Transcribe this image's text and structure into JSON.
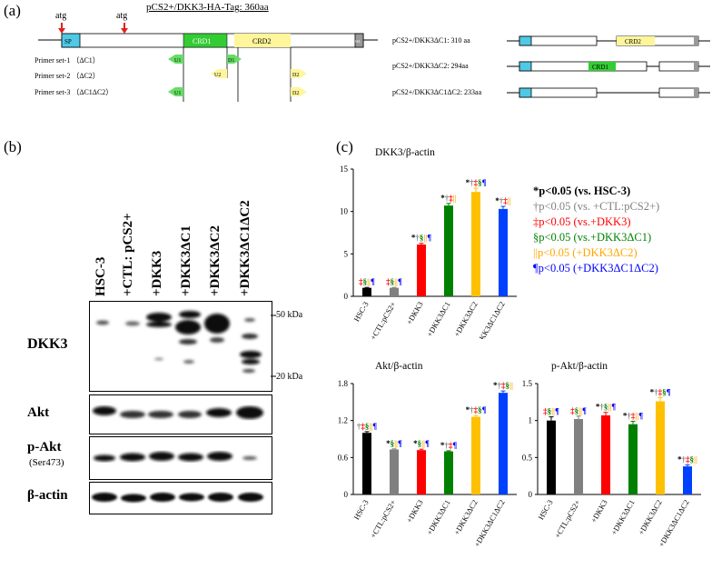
{
  "panels": {
    "a": "(a)",
    "b": "(b)",
    "c": "(c)"
  },
  "construct": {
    "title": "pCS2+/DKK3-HA-Tag: 360aa",
    "atg1": "atg",
    "atg2": "atg",
    "sp": "SP",
    "crd1": "CRD1",
    "crd2": "CRD2",
    "ha": "HA",
    "primer_sets": [
      "Primer set-1 （ΔC1）",
      "Primer set-2 （ΔC2）",
      "Primer set-3 （ΔC1ΔC2）"
    ],
    "primers": {
      "u1": "U1",
      "d1": "D1",
      "u2": "U2",
      "d2": "D2"
    },
    "variants": [
      {
        "label": "pCS2+/DKK3ΔC1: 310 aa",
        "domain": "CRD2"
      },
      {
        "label": "pCS2+/DKK3ΔC2: 294aa",
        "domain": "CRD1"
      },
      {
        "label": "pCS2+/DKK3ΔC1ΔC2: 233aa",
        "domain": ""
      }
    ],
    "colors": {
      "sp": "#4fc9e6",
      "crd1": "#33cc33",
      "crd2": "#fff59a",
      "ha": "#999999",
      "u": "#66dd66",
      "d2": "#fff59a"
    }
  },
  "blot": {
    "lanes": [
      "HSC-3",
      "+CTL: pCS2+",
      "+DKK3",
      "+DKK3ΔC1",
      "+DKK3ΔC2",
      "+DKK3ΔC1ΔC2"
    ],
    "rows": {
      "dkk3": "DKK3",
      "akt": "Akt",
      "pakt": "p-Akt",
      "pakt_sub": "(Ser473)",
      "actin": "β-actin"
    },
    "markers": {
      "kda50": "50 kDa",
      "kda20": "20 kDa"
    }
  },
  "legend": [
    {
      "text": "*p<0.05 (vs. HSC-3)",
      "color": "#000000"
    },
    {
      "text": "†p<0.05 (vs. +CTL:pCS2+)",
      "color": "#808080"
    },
    {
      "text": "‡p<0.05 (vs.+DKK3)",
      "color": "#ff0000"
    },
    {
      "text": "§p<0.05 (vs.+DKK3ΔC1)",
      "color": "#008000"
    },
    {
      "text": "||p<0.05 (+DKK3ΔC2)",
      "color": "#ffa500"
    },
    {
      "text": "¶p<0.05 (+DKK3ΔC1ΔC2)",
      "color": "#0000ff"
    }
  ],
  "chart_data": [
    {
      "type": "bar",
      "title": "DKK3/β-actin",
      "categories": [
        "HSC-3",
        "+CTL:pCS2+",
        "+DKK3",
        "+DKK3ΔC1",
        "+DKK3ΔC2",
        "+DKK3ΔC1ΔC2"
      ],
      "values": [
        1.0,
        1.0,
        6.1,
        10.7,
        12.3,
        10.3
      ],
      "errors": [
        0.05,
        0.05,
        0.15,
        0.25,
        0.45,
        0.3
      ],
      "colors": [
        "#000000",
        "#808080",
        "#ff0000",
        "#008000",
        "#ffc000",
        "#0040ff"
      ],
      "ylim": [
        0,
        15
      ],
      "yticks": [
        "0",
        "5",
        "10",
        "15"
      ],
      "ytick_values": [
        0,
        5,
        10,
        15
      ],
      "annotations": [
        [
          {
            "s": "‡",
            "c": "#ff0000"
          },
          {
            "s": "§",
            "c": "#008000"
          },
          {
            "s": "||",
            "c": "#ffa500"
          },
          {
            "s": "¶",
            "c": "#0000ff"
          }
        ],
        [
          {
            "s": "‡",
            "c": "#ff0000"
          },
          {
            "s": "§",
            "c": "#008000"
          },
          {
            "s": "||",
            "c": "#ffa500"
          },
          {
            "s": "¶",
            "c": "#0000ff"
          }
        ],
        [
          {
            "s": "*",
            "c": "#000000"
          },
          {
            "s": "†",
            "c": "#808080"
          },
          {
            "s": "§",
            "c": "#008000"
          },
          {
            "s": "||",
            "c": "#ffa500"
          },
          {
            "s": "¶",
            "c": "#0000ff"
          }
        ],
        [
          {
            "s": "*",
            "c": "#000000"
          },
          {
            "s": "†",
            "c": "#808080"
          },
          {
            "s": "‡",
            "c": "#ff0000"
          },
          {
            "s": "||",
            "c": "#ffa500"
          }
        ],
        [
          {
            "s": "*",
            "c": "#000000"
          },
          {
            "s": "†",
            "c": "#808080"
          },
          {
            "s": "‡",
            "c": "#ff0000"
          },
          {
            "s": "§",
            "c": "#008000"
          },
          {
            "s": "¶",
            "c": "#0000ff"
          }
        ],
        [
          {
            "s": "*",
            "c": "#000000"
          },
          {
            "s": "†",
            "c": "#808080"
          },
          {
            "s": "‡",
            "c": "#ff0000"
          },
          {
            "s": "||",
            "c": "#ffa500"
          }
        ]
      ]
    },
    {
      "type": "bar",
      "title": "Akt/β-actin",
      "categories": [
        "HSC-3",
        "+CTL:pCS2+",
        "+DKK3",
        "+DKK3ΔC1",
        "+DKK3ΔC2",
        "+DKK3ΔC1ΔC2"
      ],
      "values": [
        1.0,
        0.73,
        0.72,
        0.7,
        1.26,
        1.65
      ],
      "errors": [
        0.02,
        0.01,
        0.015,
        0.01,
        0.02,
        0.03
      ],
      "colors": [
        "#000000",
        "#808080",
        "#ff0000",
        "#008000",
        "#ffc000",
        "#0040ff"
      ],
      "ylim": [
        0,
        1.8
      ],
      "yticks": [
        "0",
        "0.6",
        "1.2",
        "1.8"
      ],
      "ytick_values": [
        0,
        0.6,
        1.2,
        1.8
      ],
      "annotations": [
        [
          {
            "s": "†",
            "c": "#808080"
          },
          {
            "s": "‡",
            "c": "#ff0000"
          },
          {
            "s": "§",
            "c": "#008000"
          },
          {
            "s": "||",
            "c": "#ffa500"
          },
          {
            "s": "¶",
            "c": "#0000ff"
          }
        ],
        [
          {
            "s": "*",
            "c": "#000000"
          },
          {
            "s": "§",
            "c": "#008000"
          },
          {
            "s": "||",
            "c": "#ffa500"
          },
          {
            "s": "¶",
            "c": "#0000ff"
          }
        ],
        [
          {
            "s": "*",
            "c": "#000000"
          },
          {
            "s": "§",
            "c": "#008000"
          },
          {
            "s": "||",
            "c": "#ffa500"
          },
          {
            "s": "¶",
            "c": "#0000ff"
          }
        ],
        [
          {
            "s": "*",
            "c": "#000000"
          },
          {
            "s": "†",
            "c": "#808080"
          },
          {
            "s": "‡",
            "c": "#ff0000"
          },
          {
            "s": "¶",
            "c": "#0000ff"
          }
        ],
        [
          {
            "s": "*",
            "c": "#000000"
          },
          {
            "s": "†",
            "c": "#808080"
          },
          {
            "s": "‡",
            "c": "#ff0000"
          },
          {
            "s": "§",
            "c": "#008000"
          },
          {
            "s": "¶",
            "c": "#0000ff"
          }
        ],
        [
          {
            "s": "*",
            "c": "#000000"
          },
          {
            "s": "†",
            "c": "#808080"
          },
          {
            "s": "‡",
            "c": "#ff0000"
          },
          {
            "s": "§",
            "c": "#008000"
          },
          {
            "s": "||",
            "c": "#ffa500"
          }
        ]
      ]
    },
    {
      "type": "bar",
      "title": "p-Akt/β-actin",
      "categories": [
        "HSC-3",
        "+CTL:pCS2+",
        "+DKK3",
        "+DKK3ΔC1",
        "+DKK3ΔC2",
        "+DKK3ΔC1ΔC2"
      ],
      "values": [
        1.0,
        1.02,
        1.07,
        0.95,
        1.26,
        0.38
      ],
      "errors": [
        0.05,
        0.04,
        0.04,
        0.04,
        0.05,
        0.02
      ],
      "colors": [
        "#000000",
        "#808080",
        "#ff0000",
        "#008000",
        "#ffc000",
        "#0040ff"
      ],
      "ylim": [
        0,
        1.5
      ],
      "yticks": [
        "0",
        "0.5",
        "1",
        "1.5"
      ],
      "ytick_values": [
        0,
        0.5,
        1,
        1.5
      ],
      "annotations": [
        [
          {
            "s": "‡",
            "c": "#ff0000"
          },
          {
            "s": "§",
            "c": "#008000"
          },
          {
            "s": "||",
            "c": "#ffa500"
          },
          {
            "s": "¶",
            "c": "#0000ff"
          }
        ],
        [
          {
            "s": "‡",
            "c": "#ff0000"
          },
          {
            "s": "§",
            "c": "#008000"
          },
          {
            "s": "||",
            "c": "#ffa500"
          },
          {
            "s": "¶",
            "c": "#0000ff"
          }
        ],
        [
          {
            "s": "*",
            "c": "#000000"
          },
          {
            "s": "†",
            "c": "#808080"
          },
          {
            "s": "§",
            "c": "#008000"
          },
          {
            "s": "||",
            "c": "#ffa500"
          },
          {
            "s": "¶",
            "c": "#0000ff"
          }
        ],
        [
          {
            "s": "*",
            "c": "#000000"
          },
          {
            "s": "†",
            "c": "#808080"
          },
          {
            "s": "‡",
            "c": "#ff0000"
          },
          {
            "s": "||",
            "c": "#ffa500"
          },
          {
            "s": "¶",
            "c": "#0000ff"
          }
        ],
        [
          {
            "s": "*",
            "c": "#000000"
          },
          {
            "s": "†",
            "c": "#808080"
          },
          {
            "s": "‡",
            "c": "#ff0000"
          },
          {
            "s": "§",
            "c": "#008000"
          },
          {
            "s": "¶",
            "c": "#0000ff"
          }
        ],
        [
          {
            "s": "*",
            "c": "#000000"
          },
          {
            "s": "†",
            "c": "#808080"
          },
          {
            "s": "‡",
            "c": "#ff0000"
          },
          {
            "s": "§",
            "c": "#008000"
          },
          {
            "s": "||",
            "c": "#ffa500"
          }
        ]
      ]
    }
  ]
}
